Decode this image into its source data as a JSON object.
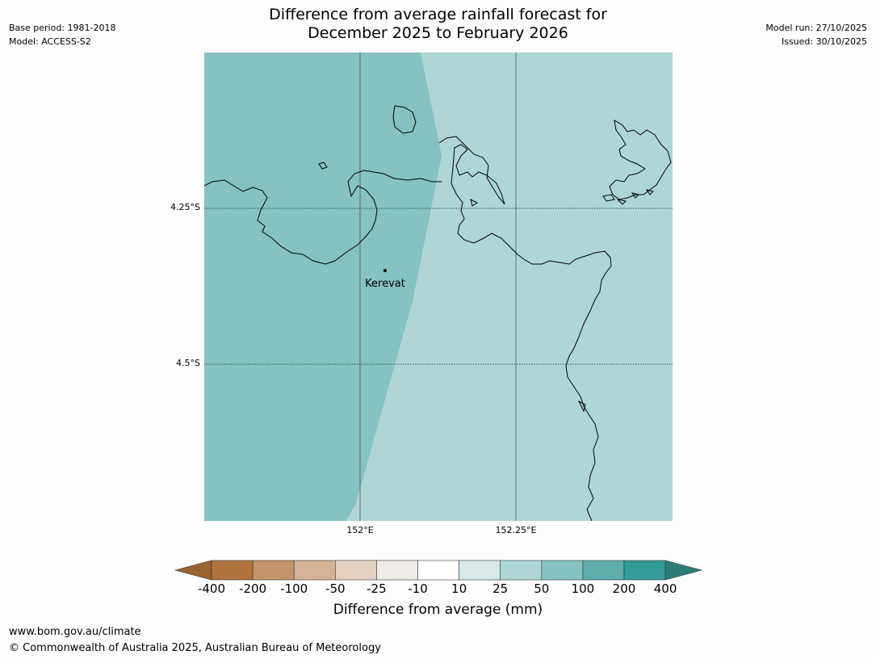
{
  "header": {
    "title_line1": "Difference from average rainfall forecast for",
    "title_line2": "December 2025 to February 2026",
    "base_period": "Base period: 1981-2018",
    "model": "Model: ACCESS-S2",
    "model_run": "Model run: 27/10/2025",
    "issued": "Issued: 30/10/2025"
  },
  "map": {
    "lat_labels": [
      "4.25°S",
      "4.5°S"
    ],
    "lon_labels": [
      "152°E",
      "152.25°E"
    ],
    "place": {
      "name": "Kerevat",
      "marker_icon": "location-dot-icon"
    },
    "region_colors": {
      "category_50_100": "#85c2c1",
      "category_25_50": "#aed6d6"
    },
    "coastline_color": "#000000"
  },
  "colorbar": {
    "title": "Difference from average (mm)",
    "ticks": [
      "-400",
      "-200",
      "-100",
      "-50",
      "-25",
      "-10",
      "10",
      "25",
      "50",
      "100",
      "200",
      "400"
    ],
    "colors": [
      "#996331",
      "#ae743b",
      "#c3936b",
      "#d3b295",
      "#e3d2c1",
      "#efebe7",
      "#ffffff",
      "#d7e9e9",
      "#aed6d6",
      "#85c2c1",
      "#5cadab",
      "#339b99",
      "#2a7c7a"
    ]
  },
  "footer": {
    "url": "www.bom.gov.au/climate",
    "copyright": "© Commonwealth of Australia 2025, Australian Bureau of Meteorology"
  }
}
